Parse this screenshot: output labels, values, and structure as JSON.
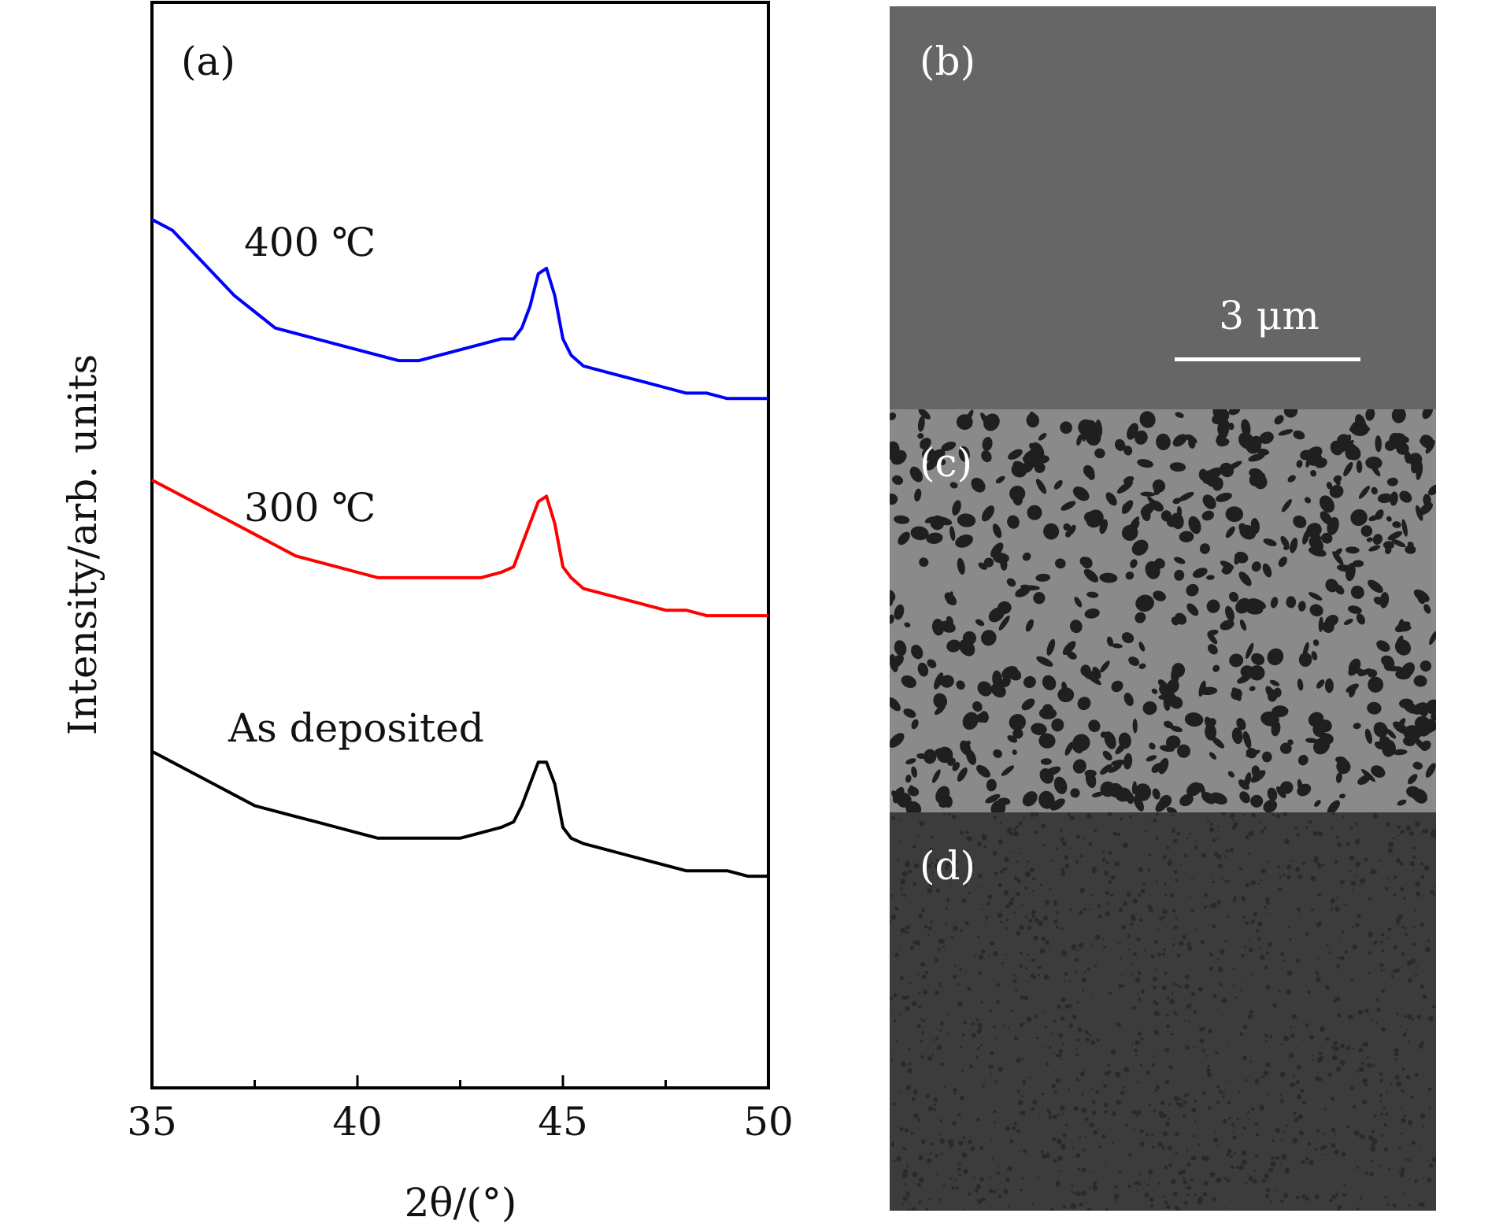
{
  "figure": {
    "panel_a_label": "(a)",
    "panel_b_label": "(b)",
    "panel_c_label": "(c)",
    "panel_d_label": "(d)",
    "scale_bar_label": "3 μm"
  },
  "chart_data": {
    "type": "line",
    "title": "",
    "xlabel": "2θ/(°)",
    "ylabel": "Intensity/arb. units",
    "xlim": [
      35,
      50
    ],
    "ylim": [
      0,
      1
    ],
    "x_ticks": [
      35,
      40,
      45,
      50
    ],
    "x_minor_ticks": [
      37.5,
      42.5,
      47.5
    ],
    "y_ticks_shown": false,
    "grid": false,
    "legend": "none",
    "series": [
      {
        "name": "400 ℃",
        "color": "#0000ff",
        "x": [
          35,
          35.5,
          36,
          36.5,
          37,
          37.5,
          38,
          38.5,
          39,
          39.5,
          40,
          40.5,
          41,
          41.5,
          42,
          42.5,
          43,
          43.5,
          43.8,
          44,
          44.2,
          44.4,
          44.6,
          44.8,
          45,
          45.2,
          45.5,
          46,
          46.5,
          47,
          47.5,
          48,
          48.5,
          49,
          49.5,
          50
        ],
        "values": [
          0.8,
          0.79,
          0.77,
          0.75,
          0.73,
          0.715,
          0.7,
          0.695,
          0.69,
          0.685,
          0.68,
          0.675,
          0.67,
          0.67,
          0.675,
          0.68,
          0.685,
          0.69,
          0.69,
          0.7,
          0.72,
          0.75,
          0.755,
          0.73,
          0.69,
          0.675,
          0.665,
          0.66,
          0.655,
          0.65,
          0.645,
          0.64,
          0.64,
          0.635,
          0.635,
          0.635
        ]
      },
      {
        "name": "300 ℃",
        "color": "#ff0000",
        "x": [
          35,
          35.5,
          36,
          36.5,
          37,
          37.5,
          38,
          38.5,
          39,
          39.5,
          40,
          40.5,
          41,
          41.5,
          42,
          42.5,
          43,
          43.5,
          43.8,
          44,
          44.2,
          44.4,
          44.6,
          44.8,
          45,
          45.2,
          45.5,
          46,
          46.5,
          47,
          47.5,
          48,
          48.5,
          49,
          49.5,
          50
        ],
        "values": [
          0.56,
          0.55,
          0.54,
          0.53,
          0.52,
          0.51,
          0.5,
          0.49,
          0.485,
          0.48,
          0.475,
          0.47,
          0.47,
          0.47,
          0.47,
          0.47,
          0.47,
          0.475,
          0.48,
          0.5,
          0.52,
          0.54,
          0.545,
          0.52,
          0.48,
          0.47,
          0.46,
          0.455,
          0.45,
          0.445,
          0.44,
          0.44,
          0.435,
          0.435,
          0.435,
          0.435
        ]
      },
      {
        "name": "As deposited",
        "color": "#000000",
        "x": [
          35,
          35.5,
          36,
          36.5,
          37,
          37.5,
          38,
          38.5,
          39,
          39.5,
          40,
          40.5,
          41,
          41.5,
          42,
          42.5,
          43,
          43.5,
          43.8,
          44,
          44.2,
          44.4,
          44.6,
          44.8,
          45,
          45.2,
          45.5,
          46,
          46.5,
          47,
          47.5,
          48,
          48.5,
          49,
          49.5,
          50
        ],
        "values": [
          0.31,
          0.3,
          0.29,
          0.28,
          0.27,
          0.26,
          0.255,
          0.25,
          0.245,
          0.24,
          0.235,
          0.23,
          0.23,
          0.23,
          0.23,
          0.23,
          0.235,
          0.24,
          0.245,
          0.26,
          0.28,
          0.3,
          0.3,
          0.28,
          0.24,
          0.23,
          0.225,
          0.22,
          0.215,
          0.21,
          0.205,
          0.2,
          0.2,
          0.2,
          0.195,
          0.195
        ]
      }
    ]
  },
  "colors": {
    "axis": "#000000",
    "sem_b_bg": "#666666",
    "sem_c_bg": "#8a8a8a",
    "sem_c_dots": "#1f1f1f",
    "sem_d_bg": "#3c3c3c",
    "sem_d_dots": "#2a2a2a",
    "scale_bar": "#ffffff"
  }
}
